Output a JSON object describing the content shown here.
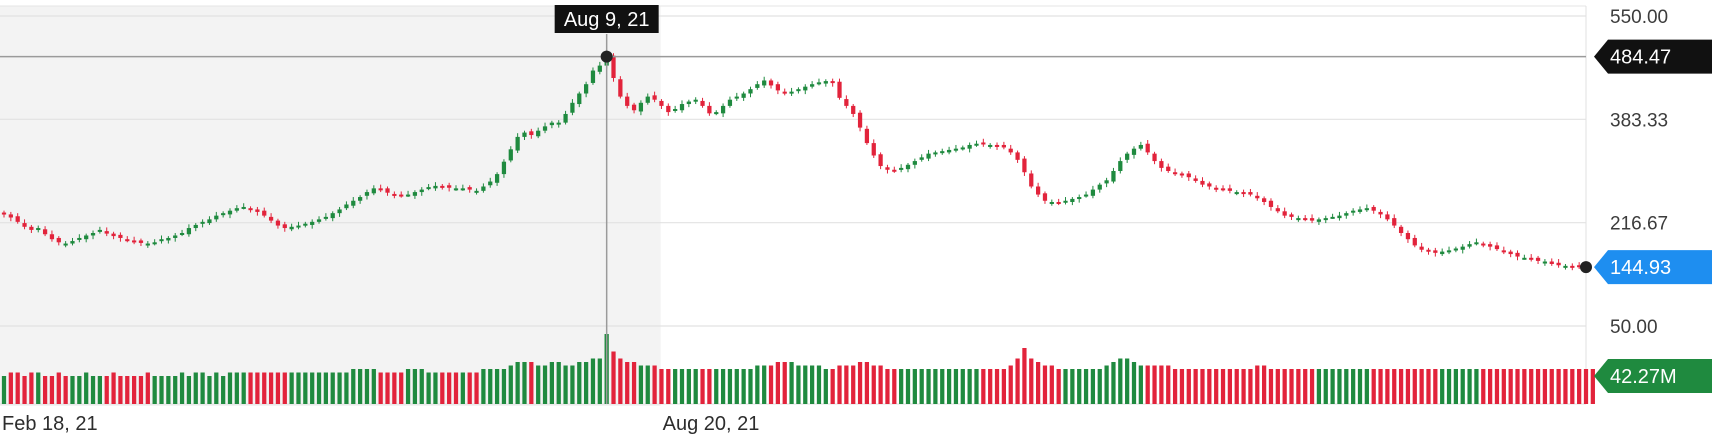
{
  "chart_data": {
    "type": "candlestick",
    "y_ticks": [
      "550.00",
      "383.33",
      "216.67",
      "50.00"
    ],
    "y_tick_values": [
      550,
      383.33,
      216.67,
      50
    ],
    "ylim": [
      50,
      550
    ],
    "x_tick_labels": [
      "Feb 18, 21",
      "Aug 20, 21"
    ],
    "grid": true,
    "hover": {
      "date": "Aug 9, 21",
      "value": "484.47"
    },
    "last_price": "144.93",
    "last_volume": "42.27M",
    "closes": [
      230,
      225,
      218,
      210,
      205,
      208,
      198,
      190,
      185,
      183,
      187,
      192,
      196,
      200,
      205,
      199,
      195,
      192,
      188,
      186,
      184,
      183,
      185,
      190,
      192,
      196,
      200,
      208,
      213,
      218,
      222,
      228,
      232,
      236,
      240,
      242,
      238,
      234,
      228,
      220,
      212,
      208,
      210,
      212,
      215,
      218,
      222,
      226,
      232,
      238,
      246,
      252,
      258,
      266,
      272,
      270,
      265,
      262,
      260,
      262,
      266,
      270,
      274,
      276,
      275,
      273,
      272,
      272,
      270,
      268,
      275,
      283,
      295,
      315,
      335,
      355,
      362,
      358,
      365,
      372,
      378,
      378,
      392,
      410,
      425,
      440,
      462,
      470,
      484,
      450,
      420,
      405,
      398,
      410,
      420,
      415,
      405,
      395,
      400,
      408,
      412,
      415,
      405,
      393,
      395,
      405,
      415,
      420,
      425,
      432,
      440,
      446,
      438,
      430,
      425,
      428,
      432,
      436,
      440,
      443,
      445,
      442,
      418,
      405,
      392,
      370,
      345,
      325,
      308,
      302,
      300,
      305,
      310,
      316,
      322,
      328,
      330,
      332,
      334,
      336,
      338,
      342,
      344,
      343,
      342,
      340,
      338,
      330,
      318,
      298,
      275,
      262,
      252,
      250,
      248,
      252,
      255,
      258,
      262,
      270,
      278,
      285,
      300,
      316,
      328,
      336,
      342,
      330,
      316,
      305,
      300,
      296,
      294,
      290,
      284,
      278,
      275,
      272,
      270,
      268,
      266,
      264,
      262,
      256,
      250,
      242,
      235,
      228,
      226,
      224,
      222,
      220,
      222,
      224,
      226,
      228,
      232,
      236,
      238,
      240,
      236,
      230,
      222,
      212,
      200,
      190,
      180,
      173,
      170,
      168,
      170,
      172,
      175,
      178,
      182,
      185,
      182,
      178,
      174,
      170,
      166,
      162,
      160,
      158,
      155,
      154,
      150,
      148,
      147,
      146,
      145,
      144.93
    ],
    "volumes": [
      8,
      9,
      9,
      8,
      9,
      9,
      8,
      8,
      9,
      8,
      8,
      8,
      9,
      8,
      8,
      8,
      9,
      8,
      8,
      8,
      8,
      9,
      8,
      8,
      8,
      8,
      9,
      8,
      9,
      9,
      8,
      9,
      8,
      9,
      9,
      9,
      9,
      9,
      9,
      9,
      9,
      9,
      9,
      9,
      9,
      9,
      9,
      9,
      9,
      9,
      9,
      10,
      10,
      10,
      10,
      9,
      9,
      9,
      9,
      10,
      10,
      10,
      9,
      9,
      9,
      9,
      9,
      9,
      9,
      9,
      10,
      10,
      10,
      10,
      11,
      12,
      12,
      12,
      11,
      11,
      12,
      12,
      11,
      11,
      12,
      12,
      13,
      13,
      20,
      15,
      13,
      12,
      12,
      11,
      11,
      11,
      10,
      10,
      10,
      10,
      10,
      10,
      10,
      10,
      10,
      10,
      10,
      10,
      10,
      10,
      11,
      11,
      11,
      12,
      12,
      12,
      11,
      11,
      11,
      11,
      10,
      10,
      11,
      11,
      11,
      12,
      12,
      11,
      11,
      10,
      10,
      10,
      10,
      10,
      10,
      10,
      10,
      10,
      10,
      10,
      10,
      10,
      10,
      10,
      10,
      10,
      10,
      11,
      13,
      16,
      13,
      12,
      11,
      11,
      10,
      10,
      10,
      10,
      10,
      10,
      10,
      11,
      12,
      13,
      13,
      12,
      11,
      11,
      11,
      11,
      11,
      10,
      10,
      10,
      10,
      10,
      10,
      10,
      10,
      10,
      10,
      10,
      10,
      11,
      11,
      10,
      10,
      10,
      10,
      10,
      10,
      10,
      10,
      10,
      10,
      10,
      10,
      10,
      10,
      10,
      10,
      10,
      10,
      10,
      10,
      10,
      10,
      10,
      10,
      10,
      10,
      10,
      10,
      10,
      10,
      10,
      10,
      10,
      10,
      10,
      10,
      10,
      10,
      10,
      10,
      10,
      10,
      10,
      10,
      10,
      10,
      10,
      10
    ]
  }
}
